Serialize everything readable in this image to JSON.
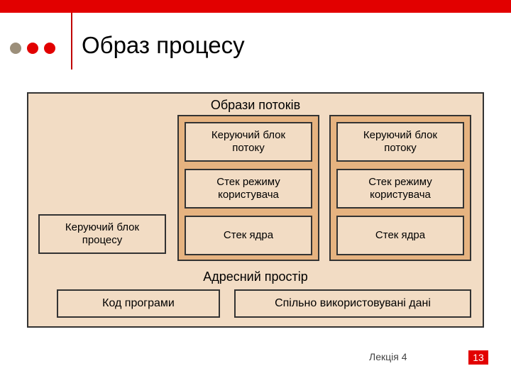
{
  "colors": {
    "red": "#e20000",
    "rule": "#c00000",
    "black": "#000000",
    "outer_bg": "#f2dcc4",
    "thread_bg": "#e6b380",
    "cell_bg": "#f2dcc4",
    "bullet1": "#9c8f7a",
    "bullet2": "#e20000",
    "bullet3": "#e20000"
  },
  "title": "Образ процесу",
  "diagram": {
    "threads_label": "Образи потоків",
    "pcb": "Керуючий блок\nпроцесу",
    "thread_cells": [
      "Керуючий блок\nпотоку",
      "Стек режиму\nкористувача",
      "Стек ядра"
    ],
    "addr_label": "Адресний простір",
    "code": "Код програми",
    "shared": "Спільно використовувані дані"
  },
  "footer": {
    "lecture": "Лекція 4",
    "page": "13"
  },
  "typography": {
    "title_fontsize": 33,
    "label_fontsize": 18,
    "cell_fontsize": 15,
    "bottom_fontsize": 16,
    "footer_fontsize": 14
  }
}
